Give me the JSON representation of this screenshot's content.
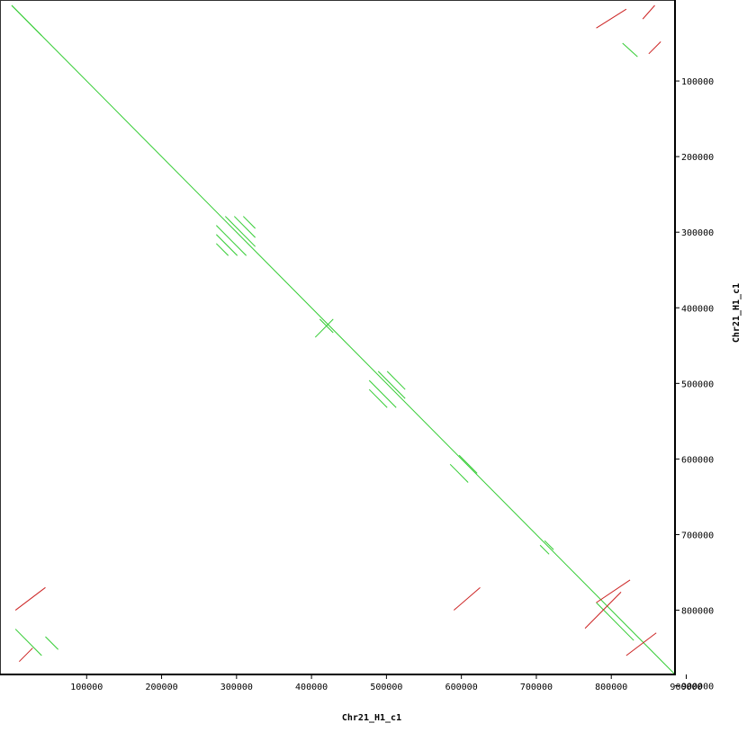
{
  "chart_data": {
    "type": "dotplot",
    "x_label": "Chr21_H1_c1",
    "y_label": "Chr21_H1_c1",
    "xlim": [
      0,
      885000
    ],
    "ylim": [
      0,
      885000
    ],
    "xticks": [
      100000,
      200000,
      300000,
      400000,
      500000,
      600000,
      700000,
      800000,
      900000
    ],
    "yticks": [
      100000,
      200000,
      300000,
      400000,
      500000,
      600000,
      700000,
      800000,
      900000
    ],
    "series": [
      {
        "color": "#33cc33",
        "segments": [
          {
            "x": [
              0,
              885000
            ],
            "y": [
              0,
              885000
            ]
          },
          {
            "x": [
              285000,
              325000
            ],
            "y": [
              279000,
              319000
            ]
          },
          {
            "x": [
              297000,
              325000
            ],
            "y": [
              279000,
              307000
            ]
          },
          {
            "x": [
              309000,
              325000
            ],
            "y": [
              279000,
              295000
            ]
          },
          {
            "x": [
              273000,
              313000
            ],
            "y": [
              291000,
              331000
            ]
          },
          {
            "x": [
              273000,
              301000
            ],
            "y": [
              303000,
              331000
            ]
          },
          {
            "x": [
              273000,
              289000
            ],
            "y": [
              315000,
              331000
            ]
          },
          {
            "x": [
              489000,
              525000
            ],
            "y": [
              484000,
              520000
            ]
          },
          {
            "x": [
              501000,
              525000
            ],
            "y": [
              484000,
              508000
            ]
          },
          {
            "x": [
              477000,
              513000
            ],
            "y": [
              496000,
              532000
            ]
          },
          {
            "x": [
              477000,
              501000
            ],
            "y": [
              508000,
              532000
            ]
          },
          {
            "x": [
              405000,
              429000
            ],
            "y": [
              439000,
              415000
            ]
          },
          {
            "x": [
              411000,
              429000
            ],
            "y": [
              415000,
              433000
            ]
          },
          {
            "x": [
              711000,
              723000
            ],
            "y": [
              708000,
              720000
            ]
          },
          {
            "x": [
              705000,
              717000
            ],
            "y": [
              714000,
              726000
            ]
          },
          {
            "x": [
              597000,
              621000
            ],
            "y": [
              595000,
              619000
            ]
          },
          {
            "x": [
              585000,
              609000
            ],
            "y": [
              607000,
              631000
            ]
          },
          {
            "x": [
              45000,
              62000
            ],
            "y": [
              835000,
              852000
            ]
          },
          {
            "x": [
              5000,
              40000
            ],
            "y": [
              825000,
              860000
            ]
          },
          {
            "x": [
              815000,
              835000
            ],
            "y": [
              50000,
              68000
            ]
          },
          {
            "x": [
              780000,
              830000
            ],
            "y": [
              790000,
              840000
            ]
          },
          {
            "x": [
              0,
              40000
            ],
            "y": [
              0,
              40000
            ]
          }
        ]
      },
      {
        "color": "#cc2222",
        "segments": [
          {
            "x": [
              10000,
              28000
            ],
            "y": [
              868000,
              850000
            ]
          },
          {
            "x": [
              842000,
              858000
            ],
            "y": [
              18000,
              0
            ]
          },
          {
            "x": [
              850000,
              866000
            ],
            "y": [
              64000,
              48000
            ]
          },
          {
            "x": [
              765000,
              813000
            ],
            "y": [
              824000,
              776000
            ]
          },
          {
            "x": [
              780000,
              825000
            ],
            "y": [
              790000,
              760000
            ]
          },
          {
            "x": [
              590000,
              625000
            ],
            "y": [
              800000,
              770000
            ]
          },
          {
            "x": [
              5000,
              45000
            ],
            "y": [
              800000,
              770000
            ]
          },
          {
            "x": [
              780000,
              820000
            ],
            "y": [
              30000,
              5000
            ]
          },
          {
            "x": [
              820000,
              860000
            ],
            "y": [
              860000,
              830000
            ]
          }
        ]
      }
    ]
  }
}
